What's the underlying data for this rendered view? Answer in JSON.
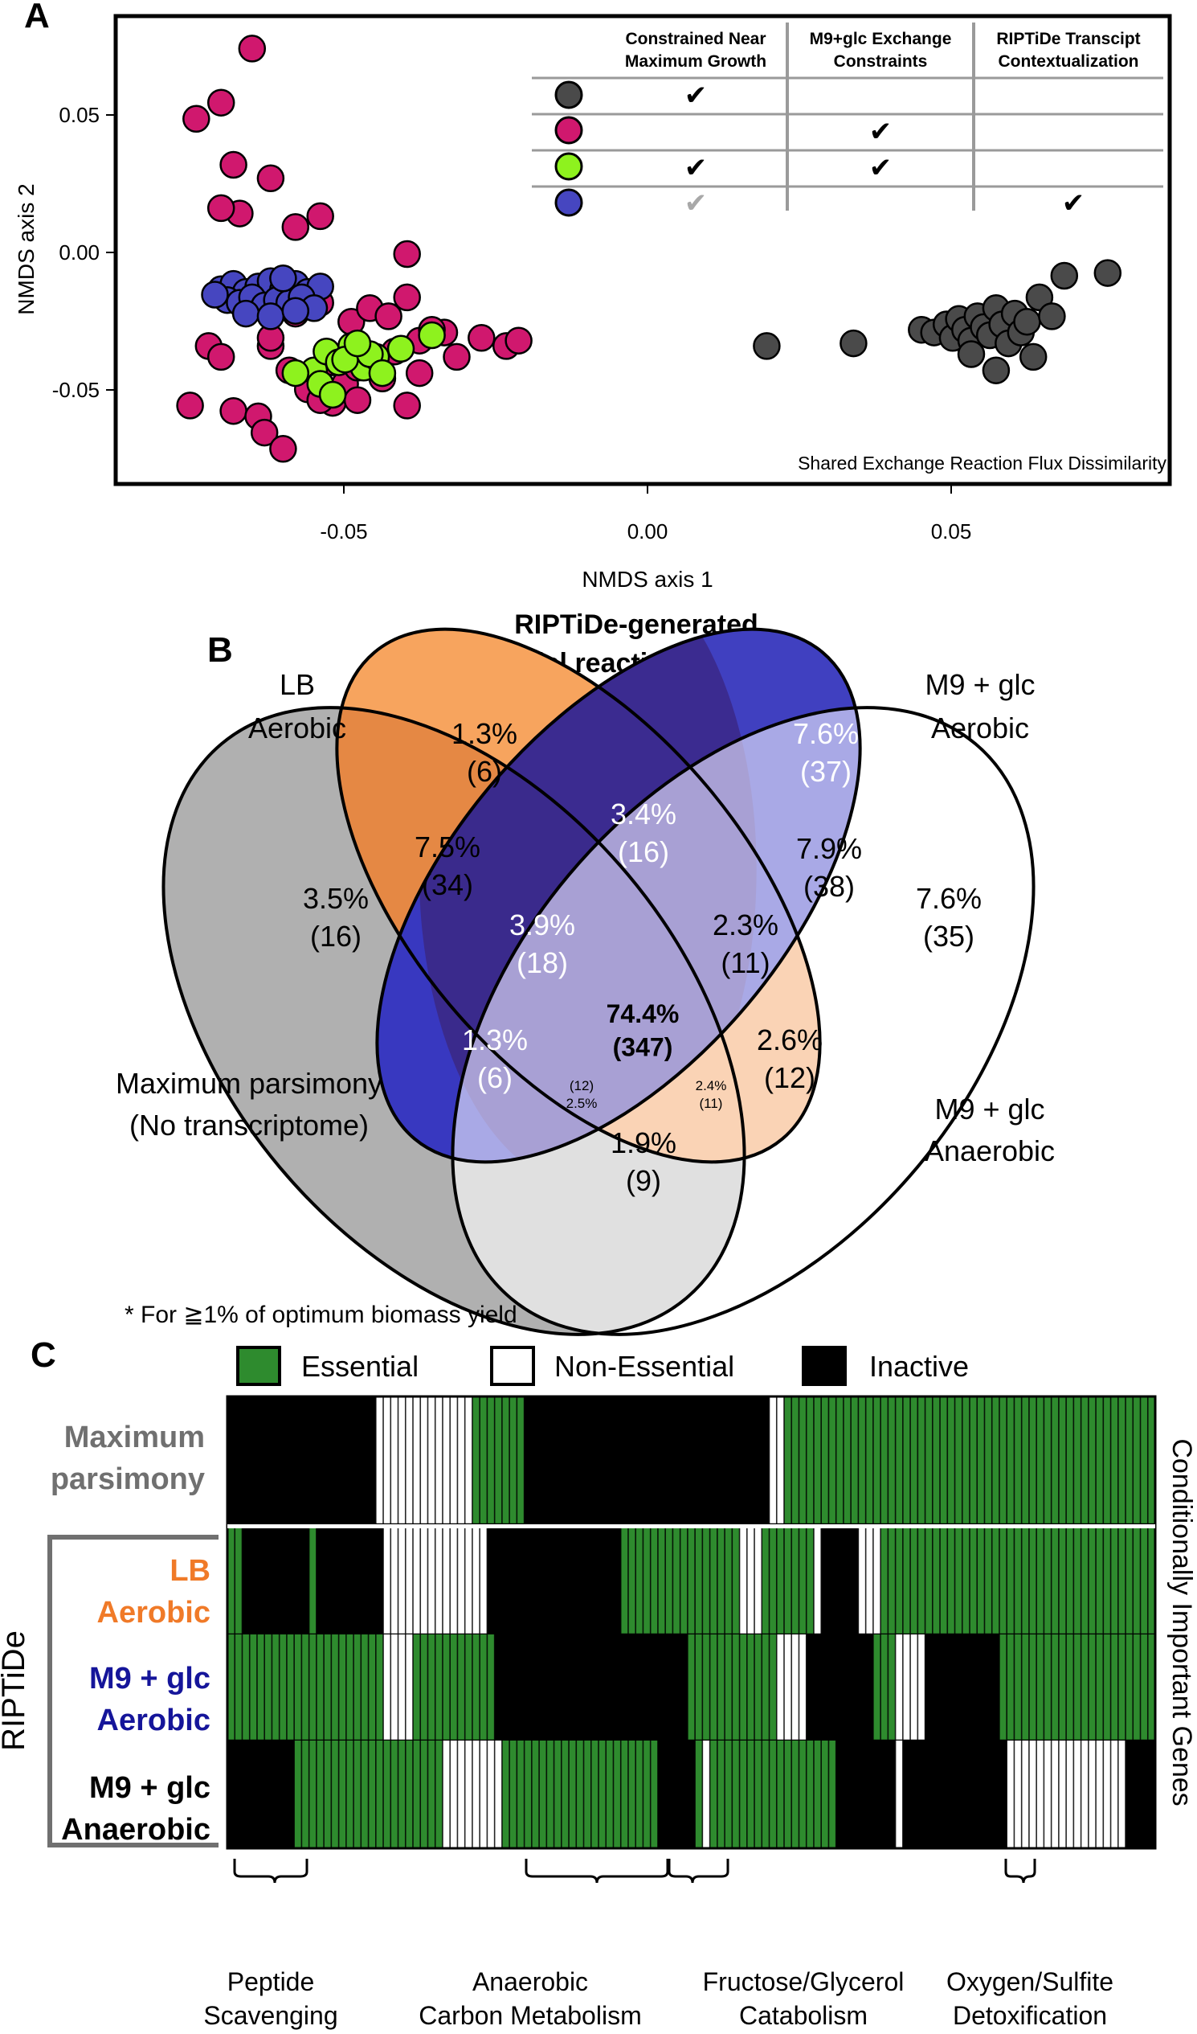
{
  "panels": {
    "a_label": "A",
    "b_label": "B",
    "c_label": "C"
  },
  "panel_a": {
    "xlabel": "NMDS axis 1",
    "ylabel": "NMDS axis 2",
    "x_ticks": [
      "-0.05",
      "0.00",
      "0.05"
    ],
    "y_ticks": [
      "0.05",
      "0.00",
      "-0.05"
    ],
    "annotation": "Shared Exchange Reaction Flux Dissimilarity",
    "table_headers": [
      [
        "Constrained Near",
        "Maximum Growth"
      ],
      [
        "M9+glc Exchange",
        "Constraints"
      ],
      [
        "RIPTiDe Transcipt",
        "Contextualization"
      ]
    ],
    "check_symbol": "✔",
    "group_colors": [
      "#4a4a4a",
      "#d0186e",
      "#8ef21e",
      "#4646c0"
    ]
  },
  "chart_data": {
    "type": "scatter",
    "xlabel": "NMDS axis 1",
    "ylabel": "NMDS axis 2",
    "xlim": [
      -0.085,
      0.085
    ],
    "ylim": [
      -0.087,
      0.086
    ],
    "x_ticks": [
      -0.05,
      0,
      0.05
    ],
    "y_ticks": [
      -0.05,
      0,
      0.05
    ],
    "legend_placement": "top-right",
    "series": [
      {
        "color": "#4a4a4a",
        "x": [
          0.02,
          0.034,
          0.045,
          0.047,
          0.049,
          0.05,
          0.051,
          0.052,
          0.053,
          0.054,
          0.055,
          0.056,
          0.057,
          0.058,
          0.059,
          0.06,
          0.061,
          0.062,
          0.064,
          0.066,
          0.068,
          0.075,
          0.063,
          0.057,
          0.053
        ],
        "y": [
          -0.036,
          -0.035,
          -0.03,
          -0.031,
          -0.028,
          -0.033,
          -0.026,
          -0.03,
          -0.034,
          -0.025,
          -0.029,
          -0.032,
          -0.022,
          -0.028,
          -0.035,
          -0.024,
          -0.031,
          -0.027,
          -0.018,
          -0.025,
          -0.01,
          -0.009,
          -0.04,
          -0.045,
          -0.039
        ]
      },
      {
        "color": "#d0186e",
        "x": [
          -0.063,
          -0.072,
          -0.068,
          -0.066,
          -0.06,
          -0.065,
          -0.068,
          -0.056,
          -0.052,
          -0.038,
          -0.073,
          -0.066,
          -0.062,
          -0.061,
          -0.058,
          -0.06,
          -0.057,
          -0.054,
          -0.05,
          -0.048,
          -0.044,
          -0.04,
          -0.036,
          -0.032,
          -0.03,
          -0.026,
          -0.022,
          -0.02,
          -0.056,
          -0.052,
          -0.047,
          -0.044,
          -0.041,
          -0.038,
          -0.034,
          -0.07,
          -0.068,
          -0.06,
          -0.05,
          -0.046,
          -0.042,
          -0.038,
          -0.036,
          -0.052,
          -0.046
        ],
        "y": [
          0.074,
          0.048,
          0.054,
          0.031,
          0.026,
          0.013,
          0.015,
          0.008,
          0.012,
          -0.002,
          -0.058,
          -0.06,
          -0.062,
          -0.068,
          -0.074,
          -0.036,
          -0.045,
          -0.052,
          -0.057,
          -0.05,
          -0.043,
          -0.038,
          -0.034,
          -0.031,
          -0.04,
          -0.033,
          -0.036,
          -0.034,
          -0.024,
          -0.02,
          -0.027,
          -0.022,
          -0.025,
          -0.018,
          -0.03,
          -0.036,
          -0.04,
          -0.033,
          -0.042,
          -0.056,
          -0.048,
          -0.058,
          -0.046,
          -0.056,
          -0.044
        ]
      },
      {
        "color": "#8ef21e",
        "x": [
          -0.053,
          -0.051,
          -0.049,
          -0.047,
          -0.045,
          -0.043,
          -0.056,
          -0.052,
          -0.048,
          -0.044,
          -0.039,
          -0.034,
          -0.05,
          -0.046,
          -0.042
        ],
        "y": [
          -0.045,
          -0.038,
          -0.042,
          -0.036,
          -0.044,
          -0.04,
          -0.046,
          -0.05,
          -0.041,
          -0.039,
          -0.037,
          -0.032,
          -0.054,
          -0.035,
          -0.046
        ]
      },
      {
        "color": "#4646c0",
        "x": [
          -0.068,
          -0.066,
          -0.064,
          -0.062,
          -0.06,
          -0.058,
          -0.056,
          -0.054,
          -0.052,
          -0.067,
          -0.065,
          -0.063,
          -0.061,
          -0.059,
          -0.057,
          -0.055,
          -0.053,
          -0.064,
          -0.06,
          -0.056,
          -0.069,
          -0.058
        ],
        "y": [
          -0.015,
          -0.013,
          -0.016,
          -0.014,
          -0.012,
          -0.015,
          -0.013,
          -0.016,
          -0.014,
          -0.019,
          -0.02,
          -0.018,
          -0.021,
          -0.019,
          -0.02,
          -0.018,
          -0.022,
          -0.024,
          -0.025,
          -0.023,
          -0.017,
          -0.011
        ]
      }
    ]
  },
  "panel_b": {
    "title_line1": "RIPTiDe-generated",
    "title_line2": "model reaction overlap",
    "set_labels": {
      "lb_line1": "LB",
      "lb_line2": "Aerobic",
      "m9a_line1": "M9 + glc",
      "m9a_line2": "Aerobic",
      "mp_line1": "Maximum parsimony",
      "mp_line2": "(No transcriptome)",
      "m9n_line1": "M9 + glc",
      "m9n_line2": "Anaerobic"
    },
    "regions": [
      {
        "pct": "1.3%",
        "count": "(6)"
      },
      {
        "pct": "7.6%",
        "count": "(37)"
      },
      {
        "pct": "3.4%",
        "count": "(16)"
      },
      {
        "pct": "7.5%",
        "count": "(34)"
      },
      {
        "pct": "7.9%",
        "count": "(38)"
      },
      {
        "pct": "3.5%",
        "count": "(16)"
      },
      {
        "pct": "3.9%",
        "count": "(18)"
      },
      {
        "pct": "2.3%",
        "count": "(11)"
      },
      {
        "pct": "7.6%",
        "count": "(35)"
      },
      {
        "pct": "74.4%",
        "count": "(347)"
      },
      {
        "pct": "1.3%",
        "count": "(6)"
      },
      {
        "pct": "2.6%",
        "count": "(12)"
      },
      {
        "pct": "2.5%",
        "count": "(12)"
      },
      {
        "pct": "2.4%",
        "count": "(11)"
      },
      {
        "pct": "1.9%",
        "count": "(9)"
      }
    ]
  },
  "panel_c": {
    "note": "* For ≧1% of optimum biomass yield",
    "legend": {
      "essential": "Essential",
      "non_essential": "Non-Essential",
      "inactive": "Inactive"
    },
    "colors": {
      "essential": "#2e8b2e",
      "inactive": "#000000",
      "non_essential": "#ffffff"
    },
    "row_labels": {
      "mp_line1": "Maximum",
      "mp_line2": "parsimony",
      "lb_line1": "LB",
      "lb_line2": "Aerobic",
      "m9a_line1": "M9 + glc",
      "m9a_line2": "Aerobic",
      "m9n_line1": "M9 + glc",
      "m9n_line2": "Anaerobic"
    },
    "riptide_label": "RIPTiDe",
    "side_label": "Conditionally Important Genes",
    "bottom_labels": [
      {
        "line1": "Peptide",
        "line2": "Scavenging"
      },
      {
        "line1": "Anaerobic",
        "line2": "Carbon Metabolism"
      },
      {
        "line1": "Fructose/Glycerol",
        "line2": "Catabolism"
      },
      {
        "line1": "Oxygen/Sulfite",
        "line2": "Detoxification"
      }
    ],
    "rows": [
      [
        [
          0,
          "I",
          20
        ],
        [
          20,
          "N",
          13
        ],
        [
          33,
          "E",
          7
        ],
        [
          40,
          "I",
          33
        ],
        [
          73,
          "N",
          2
        ],
        [
          75,
          "E",
          50
        ]
      ],
      [
        [
          0,
          "E",
          2
        ],
        [
          2,
          "I",
          9
        ],
        [
          11,
          "E",
          1
        ],
        [
          12,
          "I",
          9
        ],
        [
          21,
          "N",
          14
        ],
        [
          35,
          "I",
          18
        ],
        [
          53,
          "E",
          16
        ],
        [
          69,
          "N",
          3
        ],
        [
          72,
          "E",
          7
        ],
        [
          79,
          "N",
          1
        ],
        [
          80,
          "I",
          5
        ],
        [
          85,
          "N",
          3
        ],
        [
          88,
          "E",
          37
        ]
      ],
      [
        [
          0,
          "E",
          21
        ],
        [
          21,
          "N",
          4
        ],
        [
          25,
          "E",
          11
        ],
        [
          36,
          "I",
          26
        ],
        [
          62,
          "E",
          12
        ],
        [
          74,
          "N",
          4
        ],
        [
          78,
          "I",
          9
        ],
        [
          87,
          "E",
          3
        ],
        [
          90,
          "N",
          4
        ],
        [
          94,
          "I",
          10
        ],
        [
          104,
          "E",
          21
        ]
      ],
      [
        [
          0,
          "I",
          9
        ],
        [
          9,
          "E",
          20
        ],
        [
          29,
          "N",
          8
        ],
        [
          37,
          "E",
          21
        ],
        [
          58,
          "I",
          5
        ],
        [
          63,
          "E",
          1
        ],
        [
          64,
          "N",
          1
        ],
        [
          65,
          "E",
          17
        ],
        [
          82,
          "I",
          8
        ],
        [
          90,
          "N",
          1
        ],
        [
          91,
          "I",
          14
        ],
        [
          105,
          "N",
          16
        ],
        [
          121,
          "I",
          4
        ]
      ]
    ]
  }
}
